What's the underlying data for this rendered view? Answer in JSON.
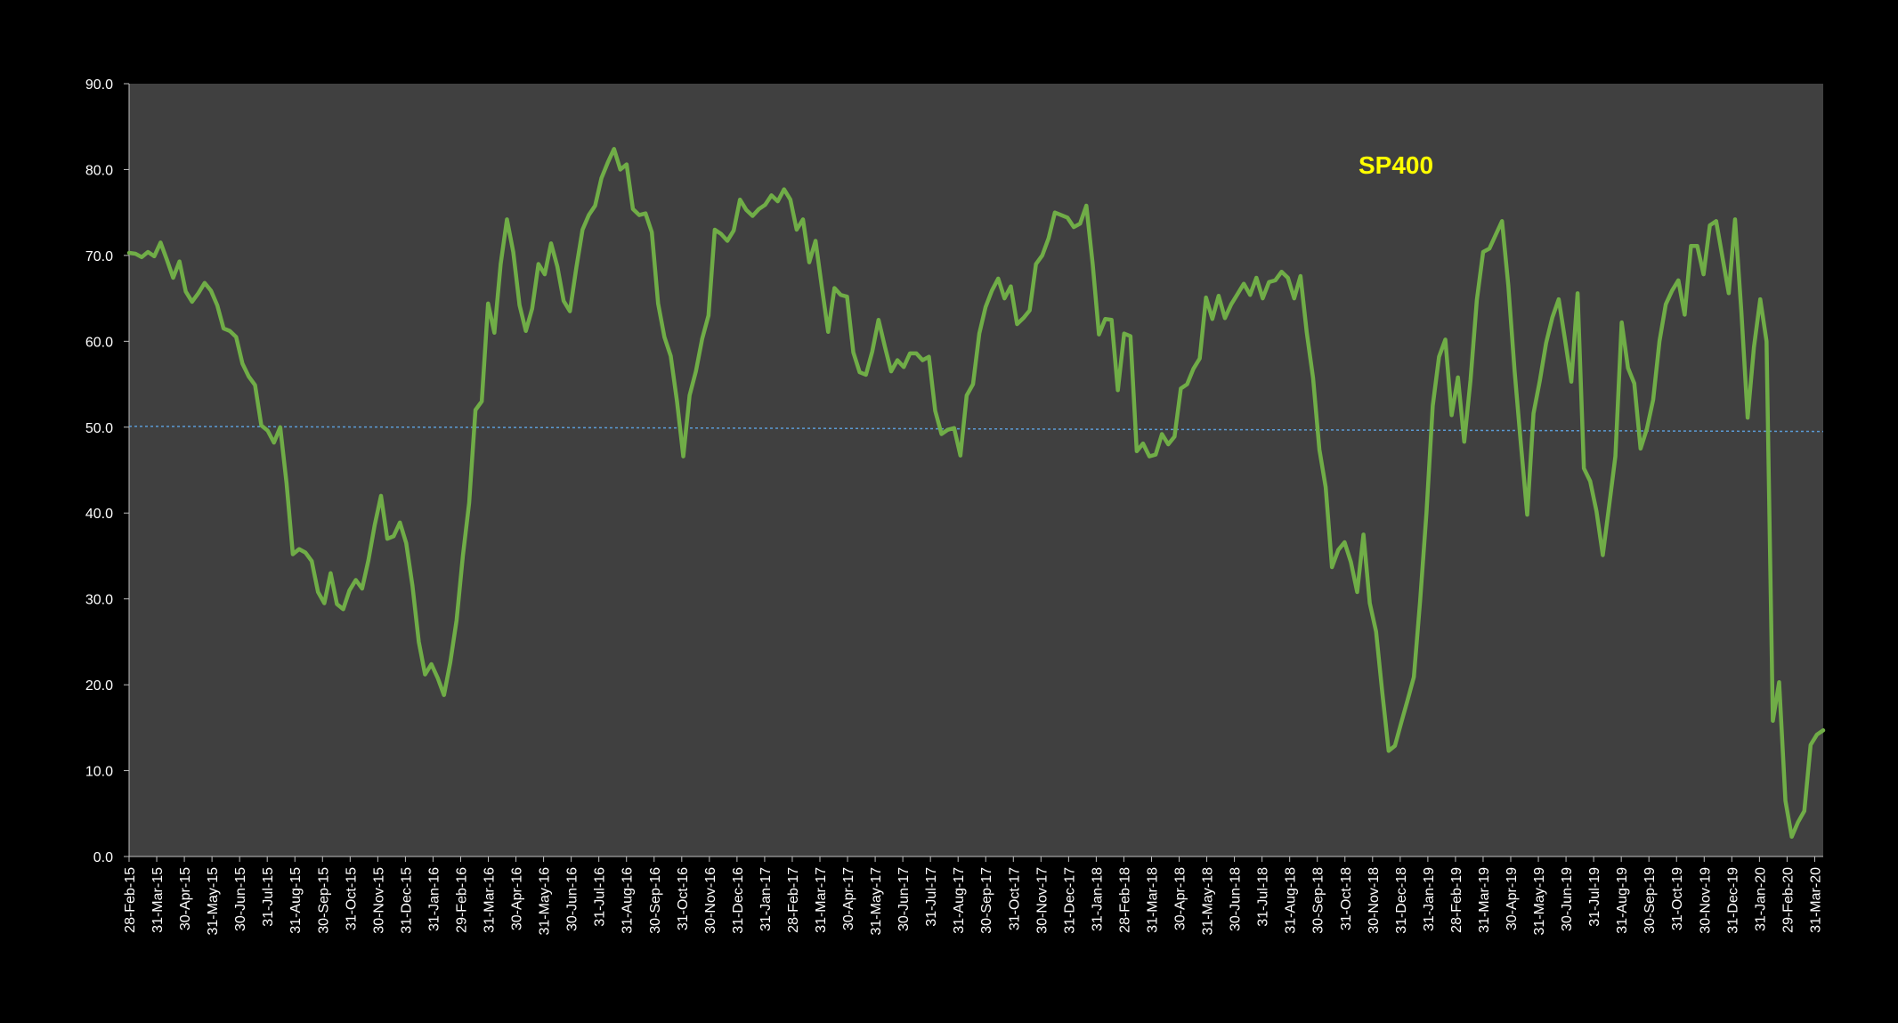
{
  "chart_data": {
    "type": "line",
    "title": "SP400",
    "xlabel": "",
    "ylabel": "",
    "ylim": [
      0,
      90
    ],
    "y_ticks": [
      "0.0",
      "10.0",
      "20.0",
      "30.0",
      "40.0",
      "50.0",
      "60.0",
      "70.0",
      "80.0",
      "90.0"
    ],
    "grid": false,
    "legend": "none",
    "colors": {
      "background": "#000000",
      "plot_area": "#404040",
      "line": "#70ad47",
      "reference_line": "#5b9bd5",
      "axis_text": "#ffffff",
      "title": "#ffff00"
    },
    "x_ticks": [
      "28-Feb-15",
      "31-Mar-15",
      "30-Apr-15",
      "31-May-15",
      "30-Jun-15",
      "31-Jul-15",
      "31-Aug-15",
      "30-Sep-15",
      "31-Oct-15",
      "30-Nov-15",
      "31-Dec-15",
      "31-Jan-16",
      "29-Feb-16",
      "31-Mar-16",
      "30-Apr-16",
      "31-May-16",
      "30-Jun-16",
      "31-Jul-16",
      "31-Aug-16",
      "30-Sep-16",
      "31-Oct-16",
      "30-Nov-16",
      "31-Dec-16",
      "31-Jan-17",
      "28-Feb-17",
      "31-Mar-17",
      "30-Apr-17",
      "31-May-17",
      "30-Jun-17",
      "31-Jul-17",
      "31-Aug-17",
      "30-Sep-17",
      "31-Oct-17",
      "30-Nov-17",
      "31-Dec-17",
      "31-Jan-18",
      "28-Feb-18",
      "31-Mar-18",
      "30-Apr-18",
      "31-May-18",
      "30-Jun-18",
      "31-Jul-18",
      "31-Aug-18",
      "30-Sep-18",
      "31-Oct-18",
      "30-Nov-18",
      "31-Dec-18",
      "31-Jan-19",
      "28-Feb-19",
      "31-Mar-19",
      "30-Apr-19",
      "31-May-19",
      "30-Jun-19",
      "31-Jul-19",
      "31-Aug-19",
      "30-Sep-19",
      "31-Oct-19",
      "30-Nov-19",
      "31-Dec-19",
      "31-Jan-20",
      "29-Feb-20",
      "31-Mar-20"
    ],
    "reference_line": {
      "from": 50.1,
      "to": 49.5
    },
    "series": [
      {
        "values": [
          70.3,
          70.2,
          69.8,
          70.4,
          69.9,
          71.5,
          69.5,
          67.4,
          69.3,
          65.8,
          64.6,
          65.6,
          66.8,
          65.9,
          64.2,
          61.5,
          61.2,
          60.5,
          57.4,
          55.9,
          54.9,
          50.2,
          49.6,
          48.2,
          50.0,
          43.5,
          35.2,
          35.8,
          35.4,
          34.4,
          30.8,
          29.5,
          33.0,
          29.4,
          28.8,
          31.0,
          32.2,
          31.2,
          34.5,
          38.6,
          42.0,
          37.0,
          37.3,
          38.9,
          36.5,
          31.5,
          25.0,
          21.2,
          22.4,
          20.8,
          18.8,
          22.6,
          27.5,
          35.0,
          41.2,
          52.0,
          53.0,
          64.4,
          61.0,
          69.0,
          74.2,
          70.4,
          64.2,
          61.2,
          63.8,
          69.0,
          67.8,
          71.4,
          68.7,
          64.7,
          63.5,
          68.5,
          73.0,
          74.7,
          75.8,
          79.0,
          80.8,
          82.4,
          80.0,
          80.6,
          75.4,
          74.7,
          74.9,
          72.7,
          64.4,
          60.5,
          58.3,
          53.0,
          46.6,
          53.7,
          56.5,
          60.3,
          63.0,
          73.0,
          72.5,
          71.7,
          72.9,
          76.5,
          75.3,
          74.6,
          75.4,
          75.9,
          77.0,
          76.3,
          77.7,
          76.5,
          73.0,
          74.2,
          69.2,
          71.7,
          66.3,
          61.1,
          66.2,
          65.4,
          65.2,
          58.7,
          56.4,
          56.1,
          58.8,
          62.5,
          59.4,
          56.5,
          57.8,
          57.0,
          58.6,
          58.6,
          57.8,
          58.2,
          51.9,
          49.2,
          49.7,
          49.9,
          46.7,
          53.7,
          55.0,
          60.9,
          64.0,
          65.9,
          67.3,
          65.0,
          66.4,
          62.0,
          62.7,
          63.6,
          69.0,
          70.0,
          72.0,
          75.0,
          74.7,
          74.4,
          73.3,
          73.7,
          75.8,
          69.0,
          60.8,
          62.6,
          62.5,
          54.3,
          60.9,
          60.6,
          47.2,
          48.1,
          46.6,
          46.8,
          49.2,
          48.0,
          48.9,
          54.5,
          55.0,
          56.8,
          58.0,
          65.1,
          62.6,
          65.3,
          62.7,
          64.3,
          65.5,
          66.7,
          65.4,
          67.4,
          65.0,
          66.9,
          67.1,
          68.1,
          67.4,
          65.0,
          67.6,
          61.0,
          55.7,
          47.4,
          43.0,
          33.7,
          35.7,
          36.6,
          34.3,
          30.8,
          37.5,
          29.5,
          26.2,
          19.0,
          12.3,
          12.9,
          15.6,
          18.2,
          20.9,
          29.8,
          40.0,
          52.5,
          58.2,
          60.2,
          51.4,
          55.8,
          48.3,
          55.5,
          64.8,
          70.4,
          70.8,
          72.4,
          74.0,
          66.5,
          56.5,
          48.0,
          39.8,
          51.6,
          55.4,
          59.8,
          62.8,
          64.9,
          60.2,
          55.3,
          65.6,
          45.2,
          43.7,
          40.2,
          35.1,
          40.8,
          46.6,
          62.2,
          56.9,
          55.1,
          47.5,
          49.8,
          53.2,
          60.0,
          64.3,
          65.9,
          67.1,
          63.1,
          71.1,
          71.1,
          67.8,
          73.5,
          74.0,
          69.8,
          65.6,
          74.2,
          63.5,
          51.1,
          59.3,
          64.9,
          60.0,
          15.8,
          20.3,
          6.5,
          2.3,
          4.0,
          5.3,
          13.0,
          14.2,
          14.7
        ]
      }
    ]
  }
}
